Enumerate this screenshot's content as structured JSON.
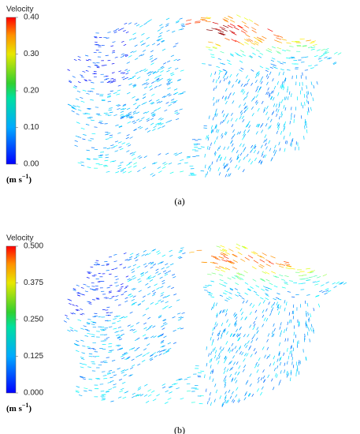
{
  "panels": [
    {
      "colorbar": {
        "title": "Velocity",
        "ticks": [
          "0.40",
          "0.30",
          "0.20",
          "0.10",
          "0.00"
        ],
        "unit_open": "(m s",
        "unit_exponent": "−1",
        "unit_close": ")"
      },
      "caption": "(a)"
    },
    {
      "colorbar": {
        "title": "Velocity",
        "ticks": [
          "0.500",
          "0.375",
          "0.250",
          "0.125",
          "0.000"
        ],
        "unit_open": "(m s",
        "unit_exponent": "−1",
        "unit_close": ")"
      },
      "caption": "(b)"
    }
  ]
}
